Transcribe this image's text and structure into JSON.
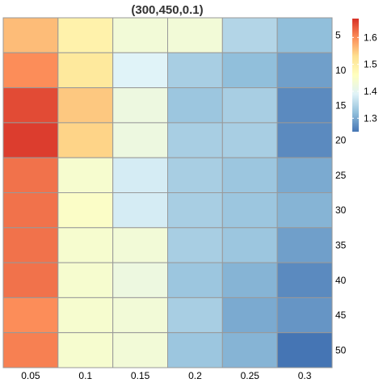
{
  "chart_data": {
    "type": "heatmap",
    "title": "(300,450,0.1)",
    "x_labels": [
      "0.05",
      "0.1",
      "0.15",
      "0.2",
      "0.25",
      "0.3"
    ],
    "y_labels": [
      "5",
      "10",
      "15",
      "20",
      "25",
      "30",
      "35",
      "40",
      "45",
      "50"
    ],
    "values": [
      [
        1.56,
        1.49,
        1.43,
        1.43,
        1.35,
        1.32
      ],
      [
        1.6,
        1.51,
        1.39,
        1.34,
        1.32,
        1.29
      ],
      [
        1.65,
        1.55,
        1.42,
        1.33,
        1.34,
        1.27
      ],
      [
        1.66,
        1.54,
        1.42,
        1.34,
        1.34,
        1.27
      ],
      [
        1.62,
        1.44,
        1.38,
        1.34,
        1.33,
        1.3
      ],
      [
        1.62,
        1.45,
        1.38,
        1.34,
        1.33,
        1.31
      ],
      [
        1.62,
        1.44,
        1.43,
        1.34,
        1.33,
        1.29
      ],
      [
        1.62,
        1.44,
        1.42,
        1.33,
        1.31,
        1.27
      ],
      [
        1.6,
        1.44,
        1.43,
        1.34,
        1.3,
        1.28
      ],
      [
        1.61,
        1.44,
        1.43,
        1.33,
        1.31,
        1.25
      ]
    ],
    "colorbar": {
      "ticks": [
        1.3,
        1.4,
        1.5,
        1.6
      ],
      "tick_labels": [
        "1.3",
        "1.4",
        "1.5",
        "1.6"
      ],
      "min": 1.25,
      "max": 1.67,
      "colors": [
        "#4575B4",
        "#91BFDB",
        "#E0F3F8",
        "#FFFFBF",
        "#FEE090",
        "#FC8D59",
        "#D73027"
      ]
    },
    "x_axis_position": "bottom",
    "y_axis_position": "right",
    "legend_position": "top-right",
    "grid": true,
    "cell_border_color": "#999999"
  }
}
